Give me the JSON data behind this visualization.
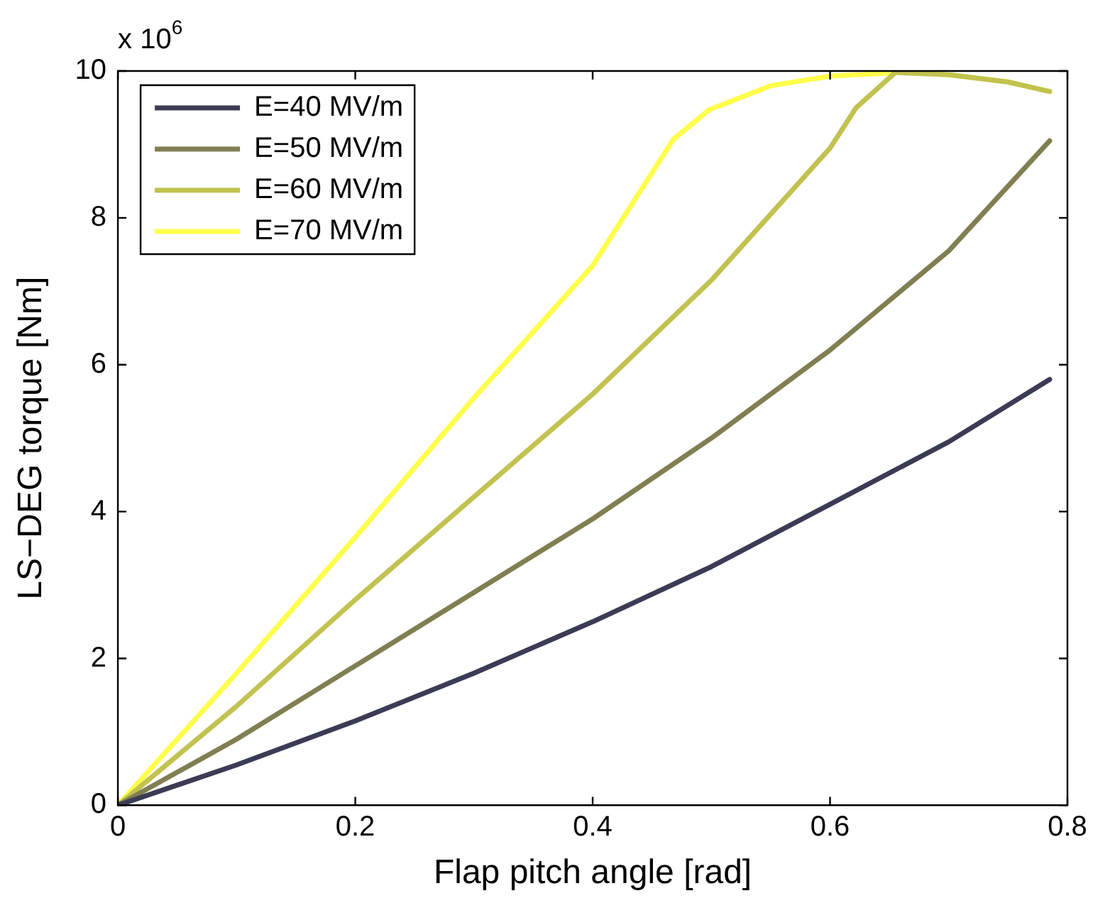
{
  "chart_data": {
    "type": "line",
    "xlabel": "Flap pitch angle [rad]",
    "ylabel": "LS−DEG torque [Nm]",
    "annotations": [
      "x 10$^{6}$"
    ],
    "xlim": [
      0,
      0.8
    ],
    "xticks": [
      0,
      0.2,
      0.4,
      0.6,
      0.8
    ],
    "ylim": [
      0,
      10
    ],
    "yticks": [
      0,
      2,
      4,
      6,
      8,
      10
    ],
    "grid": false,
    "legend": "top left",
    "marker": "none",
    "line_style": "solid",
    "series": [
      {
        "name": "E=40 MV/m",
        "color": "#3b3b55",
        "x": [
          0,
          0.1,
          0.2,
          0.3,
          0.4,
          0.5,
          0.6,
          0.7,
          0.785
        ],
        "values": [
          0,
          0.55,
          1.15,
          1.8,
          2.5,
          3.25,
          4.1,
          4.95,
          5.8
        ]
      },
      {
        "name": "E=50 MV/m",
        "color": "#7f7f52",
        "x": [
          0,
          0.1,
          0.2,
          0.3,
          0.4,
          0.5,
          0.6,
          0.7,
          0.785
        ],
        "values": [
          0,
          0.9,
          1.9,
          2.9,
          3.9,
          5.0,
          6.2,
          7.55,
          9.05
        ]
      },
      {
        "name": "E=60 MV/m",
        "color": "#c2c250",
        "x": [
          0,
          0.1,
          0.2,
          0.3,
          0.4,
          0.5,
          0.6,
          0.622,
          0.655,
          0.7,
          0.75,
          0.785
        ],
        "values": [
          0,
          1.35,
          2.8,
          4.2,
          5.6,
          7.15,
          8.95,
          9.5,
          9.98,
          9.95,
          9.85,
          9.72
        ]
      },
      {
        "name": "E=70 MV/m",
        "color": "#ffff4a",
        "x": [
          0,
          0.1,
          0.2,
          0.3,
          0.4,
          0.468,
          0.498,
          0.55,
          0.6,
          0.66,
          0.7,
          0.75,
          0.785
        ],
        "values": [
          0,
          1.8,
          3.65,
          5.55,
          7.35,
          9.07,
          9.47,
          9.8,
          9.93,
          9.98,
          9.95,
          9.85,
          9.72
        ]
      }
    ]
  }
}
